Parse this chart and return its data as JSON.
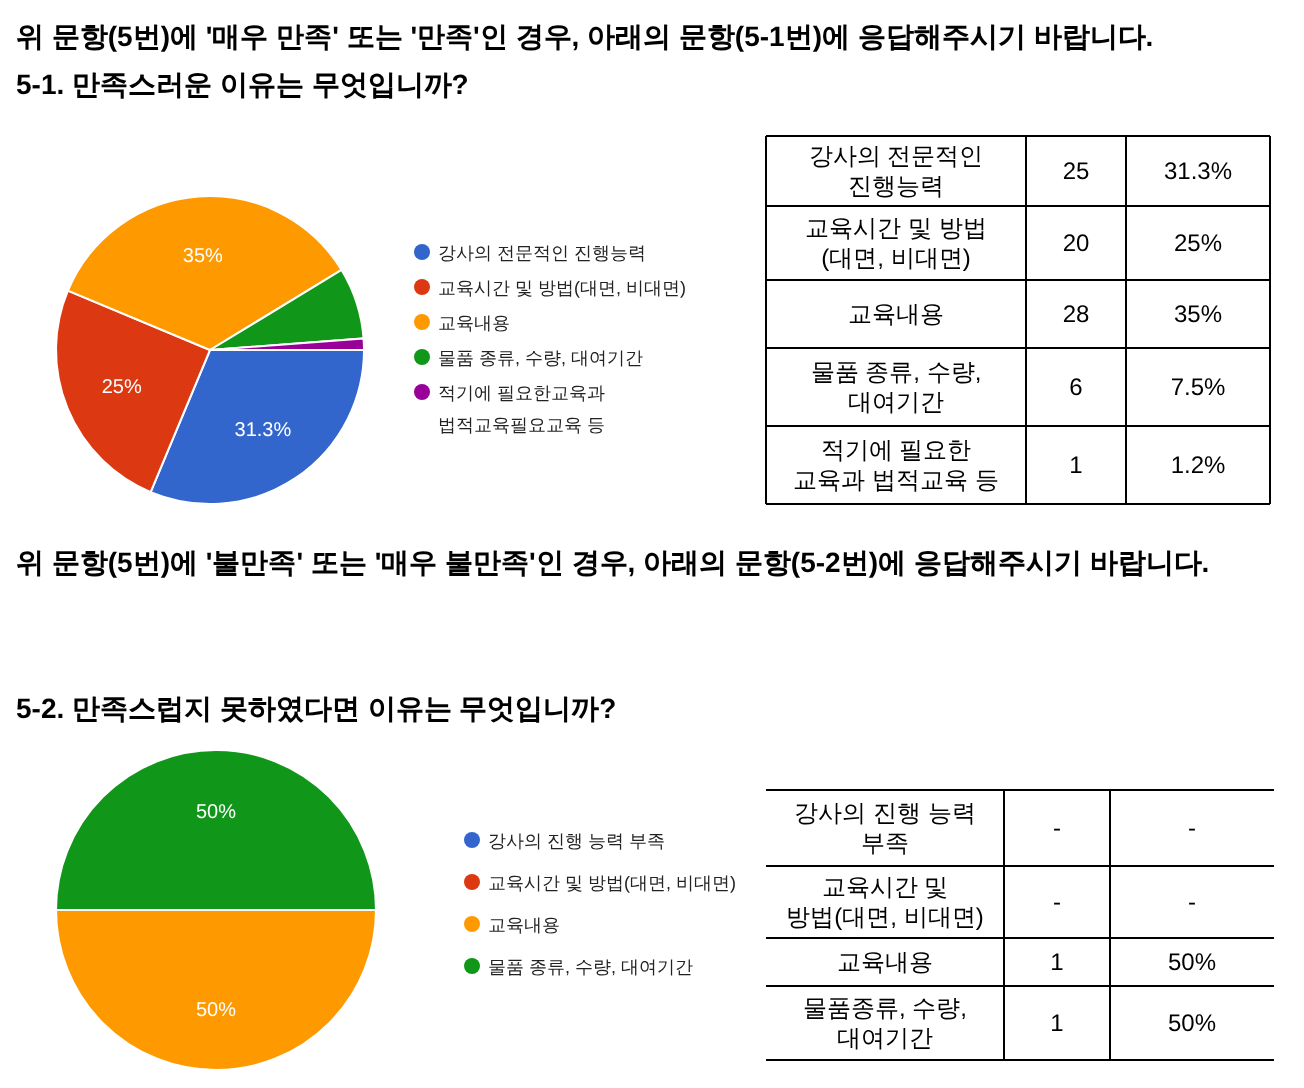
{
  "chart_data": [
    {
      "type": "pie",
      "title": "위 문항(5번)에 '매우 만족' 또는 '만족'인 경우, 아래의 문항(5-1번)에 응답해주시기 바랍니다.",
      "subtitle": "5-1. 만족스러운 이유는 무엇입니까?",
      "categories": [
        "강사의 전문적인 진행능력",
        "교육시간 및 방법(대면, 비대면)",
        "교육내용",
        "물품 종류, 수량, 대여기간",
        "적기에 필요한교육과 법적교육필요교육 등"
      ],
      "values": [
        31.3,
        25,
        35,
        7.5,
        1.2
      ],
      "colors": [
        "#3366cc",
        "#dc3912",
        "#ff9900",
        "#109618",
        "#990099"
      ],
      "value_labels": [
        "31.3%",
        "25%",
        "35%",
        null,
        null
      ],
      "legend": "right"
    },
    {
      "type": "other",
      "annotations": [
        "강사의 전문적인\n진행능력",
        "25",
        "31.3%",
        "교육시간 및 방법\n(대면, 비대면)",
        "20",
        "25%",
        "교육내용",
        "28",
        "35%",
        "물품 종류, 수량,\n대여기간",
        "6",
        "7.5%",
        "적기에 필요한\n교육과 법적교육 등",
        "1",
        "1.2%"
      ]
    },
    {
      "type": "pie",
      "title": "위 문항(5번)에 '불만족' 또는 '매우 불만족'인 경우, 아래의 문항(5-2번)에 응답해주시기 바랍니다.",
      "subtitle": "5-2. 만족스럽지 못하였다면 이유는 무엇입니까?",
      "categories": [
        "강사의 진행 능력 부족",
        "교육시간 및 방법(대면, 비대면)",
        "교육내용",
        "물품 종류, 수량, 대여기간"
      ],
      "values": [
        0,
        0,
        50,
        50
      ],
      "colors": [
        "#3366cc",
        "#dc3912",
        "#ff9900",
        "#109618"
      ],
      "value_labels": [
        null,
        null,
        "50%",
        "50%"
      ],
      "legend": "right"
    },
    {
      "type": "other",
      "annotations": [
        "강사의 진행 능력\n부족",
        "-",
        "-",
        "교육시간 및\n방법(대면, 비대면)",
        "-",
        "-",
        "교육내용",
        "1",
        "50%",
        "물품종류, 수량,\n대여기간",
        "1",
        "50%"
      ]
    }
  ]
}
